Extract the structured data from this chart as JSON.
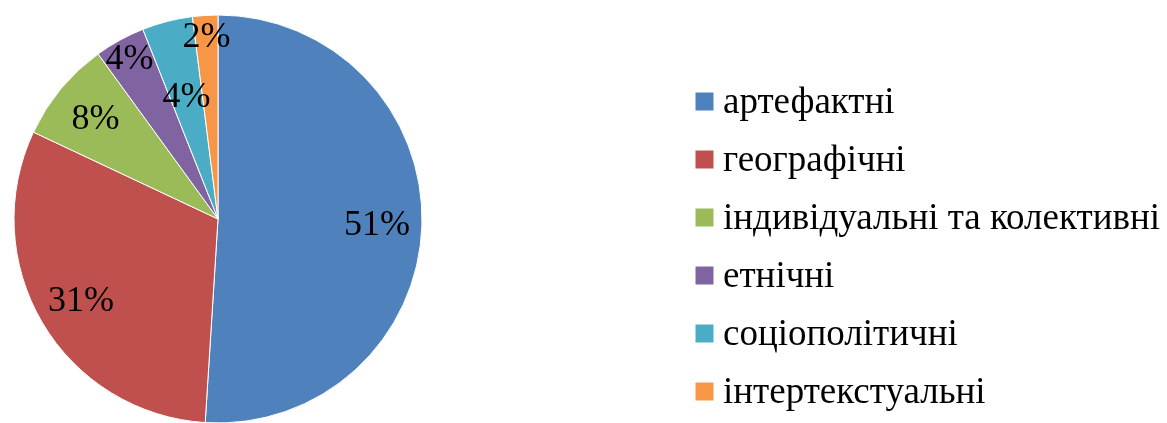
{
  "chart_data": {
    "type": "pie",
    "categories": [
      "артефактні",
      "географічні",
      "індивідуальні та колективні",
      "етнічні",
      "соціополітичні",
      "інтертекстуальні"
    ],
    "values": [
      51,
      31,
      8,
      4,
      4,
      2
    ],
    "colors": [
      "#4f81bd",
      "#c0504d",
      "#9bbb59",
      "#8064a2",
      "#4bacc6",
      "#f79646"
    ],
    "value_labels": [
      "51%",
      "31%",
      "8%",
      "4%",
      "4%",
      "2%"
    ],
    "legend": "right"
  }
}
